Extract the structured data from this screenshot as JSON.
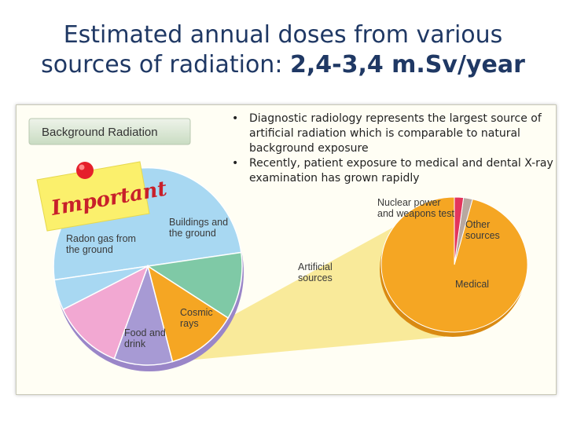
{
  "title": {
    "line1": "Estimated annual doses from various",
    "line2_prefix": "sources of radiation: ",
    "line2_highlight": "2,4-3,4 m.Sv/year"
  },
  "badge": {
    "label": "Background Radiation"
  },
  "sticky_note": {
    "text": "Important"
  },
  "bullets": [
    "Diagnostic radiology represents the largest source of artificial radiation which is comparable to natural background exposure",
    "Recently, patient exposure to medical and dental X-ray examination has grown rapidly"
  ],
  "colors": {
    "radon": "#a8d8f2",
    "buildings": "#7fc9a6",
    "cosmic": "#a79ad4",
    "food": "#f2a8d2",
    "artificial": "#f5a623",
    "highlight_band": "#f8e68a",
    "nuclear": "#e3355c",
    "other": "#b9a8a0",
    "medical": "#f5a623",
    "title": "#1f3864"
  },
  "chart_data": [
    {
      "type": "pie",
      "title": "Background Radiation",
      "slices": [
        {
          "label": "Radon gas from the ground",
          "value": 50
        },
        {
          "label": "Buildings and the ground",
          "value": 11
        },
        {
          "label": "Artificial sources",
          "value": 12
        },
        {
          "label": "Cosmic rays",
          "value": 10
        },
        {
          "label": "Food and drink",
          "value": 12
        },
        {
          "label": "Other (unlabeled)",
          "value": 5
        }
      ]
    },
    {
      "type": "pie",
      "title": "Artificial sources",
      "slices": [
        {
          "label": "Medical",
          "value": 96
        },
        {
          "label": "Nuclear power and weapons test",
          "value": 2
        },
        {
          "label": "Other sources",
          "value": 2
        }
      ]
    }
  ],
  "labels": {
    "radon": [
      "Radon gas from",
      "the ground"
    ],
    "buildings": [
      "Buildings and",
      "the ground"
    ],
    "artificial": [
      "Artificial",
      "sources"
    ],
    "cosmic": [
      "Cosmic",
      "rays"
    ],
    "food": [
      "Food and",
      "drink"
    ],
    "nuclear": [
      "Nuclear power",
      "and weapons test"
    ],
    "other": [
      "Other",
      "sources"
    ],
    "medical": [
      "Medical"
    ]
  }
}
